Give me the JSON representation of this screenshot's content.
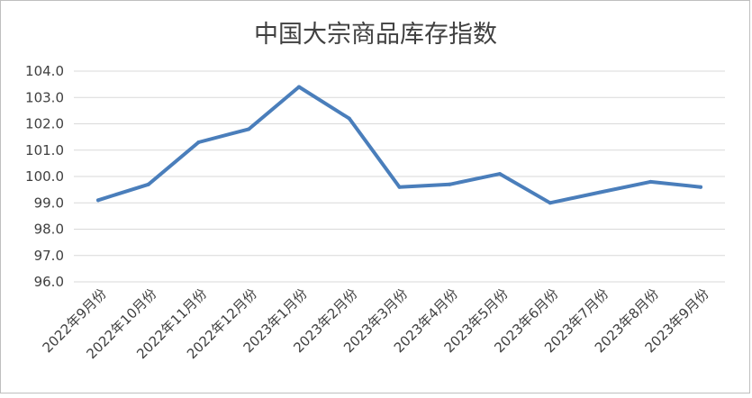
{
  "chart_data": {
    "type": "line",
    "title": "中国大宗商品库存指数",
    "categories": [
      "2022年9月份",
      "2022年10月份",
      "2022年11月份",
      "2022年12月份",
      "2023年1月份",
      "2023年2月份",
      "2023年3月份",
      "2023年4月份",
      "2023年5月份",
      "2023年6月份",
      "2023年7月份",
      "2023年8月份",
      "2023年9月份"
    ],
    "values": [
      99.1,
      99.7,
      101.3,
      101.8,
      103.4,
      102.2,
      99.6,
      99.7,
      100.1,
      99.0,
      99.4,
      99.8,
      99.6
    ],
    "y_ticks": [
      "104.0",
      "103.0",
      "102.0",
      "101.0",
      "100.0",
      "99.0",
      "98.0",
      "97.0",
      "96.0"
    ],
    "ylim": [
      96,
      104
    ],
    "grid": true,
    "legend": "none",
    "line_color": "#4a7ebb"
  }
}
